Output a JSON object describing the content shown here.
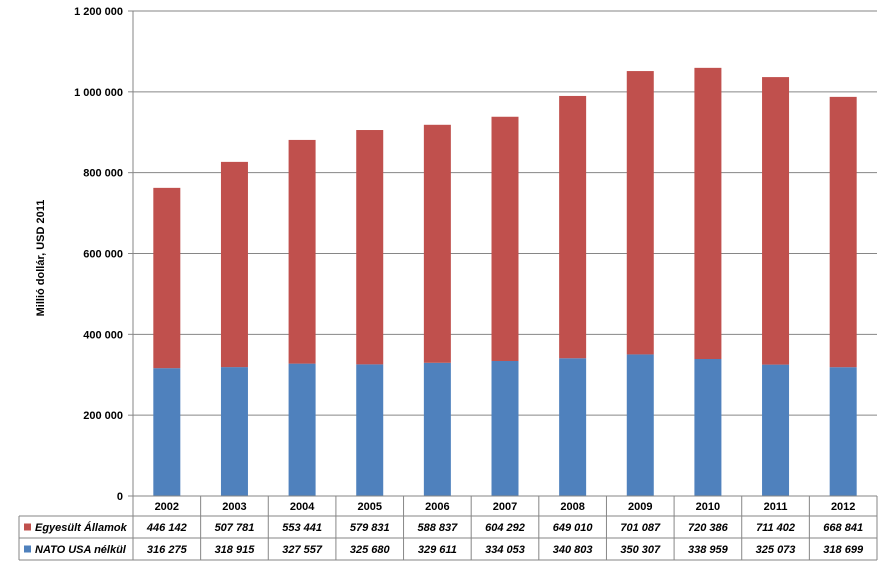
{
  "chart_data": {
    "type": "bar",
    "stacked": true,
    "categories": [
      "2002",
      "2003",
      "2004",
      "2005",
      "2006",
      "2007",
      "2008",
      "2009",
      "2010",
      "2011",
      "2012"
    ],
    "series": [
      {
        "name": "NATO USA nélkül",
        "color": "#4F81BD",
        "values": [
          316275,
          318915,
          327557,
          325680,
          329611,
          334053,
          340803,
          350307,
          338959,
          325073,
          318699
        ],
        "labels": [
          "316 275",
          "318 915",
          "327 557",
          "325 680",
          "329 611",
          "334 053",
          "340 803",
          "350 307",
          "338 959",
          "325 073",
          "318 699"
        ]
      },
      {
        "name": "Egyesült Államok",
        "color": "#C0504D",
        "values": [
          446142,
          507781,
          553441,
          579831,
          588837,
          604292,
          649010,
          701087,
          720386,
          711402,
          668841
        ],
        "labels": [
          "446 142",
          "507 781",
          "553 441",
          "579 831",
          "588 837",
          "604 292",
          "649 010",
          "701 087",
          "720 386",
          "711 402",
          "668 841"
        ]
      }
    ],
    "table_row_order": [
      "Egyesült Államok",
      "NATO USA nélkül"
    ],
    "ylabel": "Millió dollár, USD 2011",
    "ylim": [
      0,
      1200000
    ],
    "yticks": [
      0,
      200000,
      400000,
      600000,
      800000,
      1000000,
      1200000
    ],
    "ytick_labels": [
      "0",
      "200 000",
      "400 000",
      "600 000",
      "800 000",
      "1 000 000",
      "1 200 000"
    ],
    "grid": true,
    "legend": "data-table"
  }
}
